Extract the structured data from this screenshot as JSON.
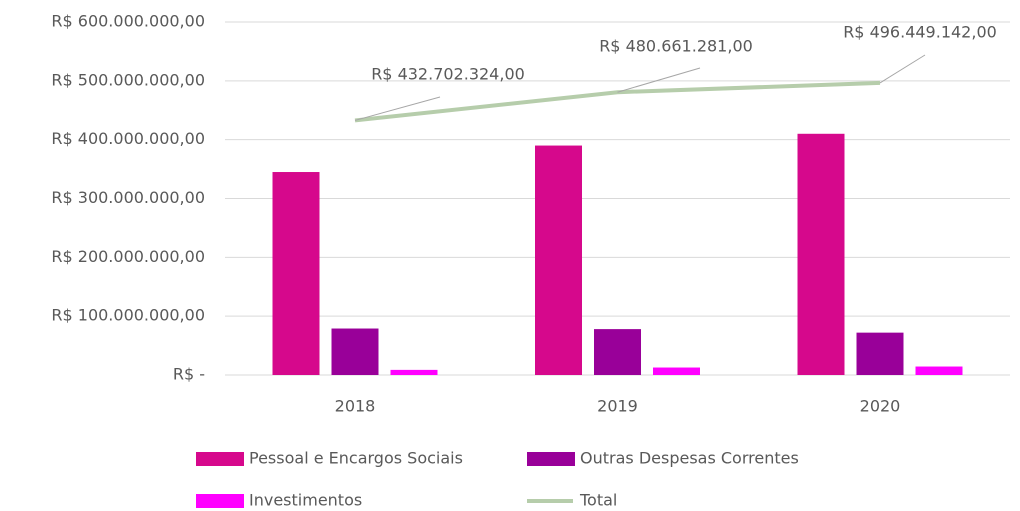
{
  "chart_data": {
    "type": "bar",
    "categories": [
      "2018",
      "2019",
      "2020"
    ],
    "series": [
      {
        "name": "Pessoal e Encargos Sociais",
        "color": "#d6088c",
        "values": [
          345000000,
          390000000,
          410000000
        ]
      },
      {
        "name": "Outras Despesas Correntes",
        "color": "#990099",
        "values": [
          79000000,
          78000000,
          72000000
        ]
      },
      {
        "name": "Investimentos",
        "color": "#ff00ff",
        "values": [
          8700000,
          12700000,
          14400000
        ]
      },
      {
        "name": "Total",
        "type": "line",
        "color": "#b6cdab",
        "values": [
          432702324,
          480661281,
          496449142
        ],
        "value_labels": [
          "R$ 432.702.324,00",
          "R$ 480.661.281,00",
          "R$ 496.449.142,00"
        ]
      }
    ],
    "ylim": [
      0,
      600000000
    ],
    "yticks": [
      {
        "value": 0,
        "label": "R$ -"
      },
      {
        "value": 100000000,
        "label": "R$ 100.000.000,00"
      },
      {
        "value": 200000000,
        "label": "R$ 200.000.000,00"
      },
      {
        "value": 300000000,
        "label": "R$ 300.000.000,00"
      },
      {
        "value": 400000000,
        "label": "R$ 400.000.000,00"
      },
      {
        "value": 500000000,
        "label": "R$ 500.000.000,00"
      },
      {
        "value": 600000000,
        "label": "R$ 600.000.000,00"
      }
    ],
    "grid": true,
    "legend": "bottom"
  }
}
